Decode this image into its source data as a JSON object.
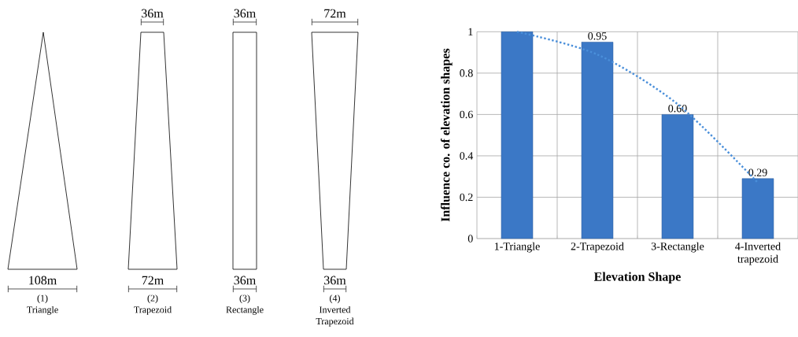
{
  "chart_data": [
    {
      "type": "other",
      "categories": [
        "(1) Triangle",
        "(2) Trapezoid",
        "(3) Rectangle",
        "(4) Inverted Trapezoid"
      ],
      "annotations": [
        "36m",
        "36m",
        "72m",
        "108m",
        "72m",
        "36m",
        "36m"
      ]
    },
    {
      "type": "bar",
      "categories": [
        "1-Triangle",
        "2-Trapezoid",
        "3-Rectangle",
        "4-Inverted trapezoid"
      ],
      "xlabel": "Elevation Shape",
      "ylabel": "Influence co. of elevation shapes",
      "series": [
        {
          "type": "bar",
          "color": "#3b78c6",
          "values": [
            1,
            0.95,
            0.6,
            0.29
          ],
          "value_labels": [
            null,
            "0.95",
            "0.60",
            "0.29"
          ]
        },
        {
          "type": "line",
          "color": "#4a8fda",
          "line_style": "dotted",
          "values": [
            1.0,
            0.89,
            0.65,
            0.27
          ]
        }
      ],
      "ylim": [
        0,
        1
      ],
      "yticks": [
        0,
        {
          "value": 0.2,
          "label": "0.2"
        },
        {
          "value": 0.4,
          "label": "0.4"
        },
        {
          "value": 0.6,
          "label": "0.6"
        },
        {
          "value": 0.8,
          "label": "0.8"
        },
        1
      ],
      "grid": true
    }
  ]
}
